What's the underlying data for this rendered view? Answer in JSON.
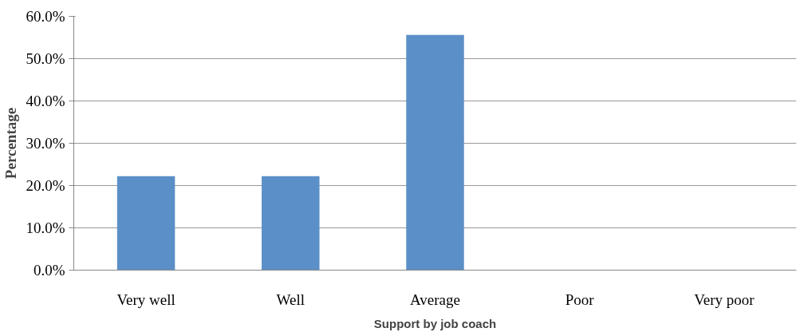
{
  "chart_data": {
    "type": "bar",
    "xlabel": "Support by job coach",
    "ylabel": "Percentage",
    "categories": [
      "Very well",
      "Well",
      "Average",
      "Poor",
      "Very poor"
    ],
    "values": [
      22.2,
      22.2,
      55.6,
      0,
      0
    ],
    "color": "#5b8fc7",
    "ylim": [
      0,
      60
    ],
    "yticks": [
      {
        "value": 0,
        "label": "0.0%"
      },
      {
        "value": 10,
        "label": "10.0%"
      },
      {
        "value": 20,
        "label": "20.0%"
      },
      {
        "value": 30,
        "label": "30.0%"
      },
      {
        "value": 40,
        "label": "40.0%"
      },
      {
        "value": 50,
        "label": "50.0%"
      },
      {
        "value": 60,
        "label": "60.0%"
      }
    ],
    "grid": "y"
  }
}
